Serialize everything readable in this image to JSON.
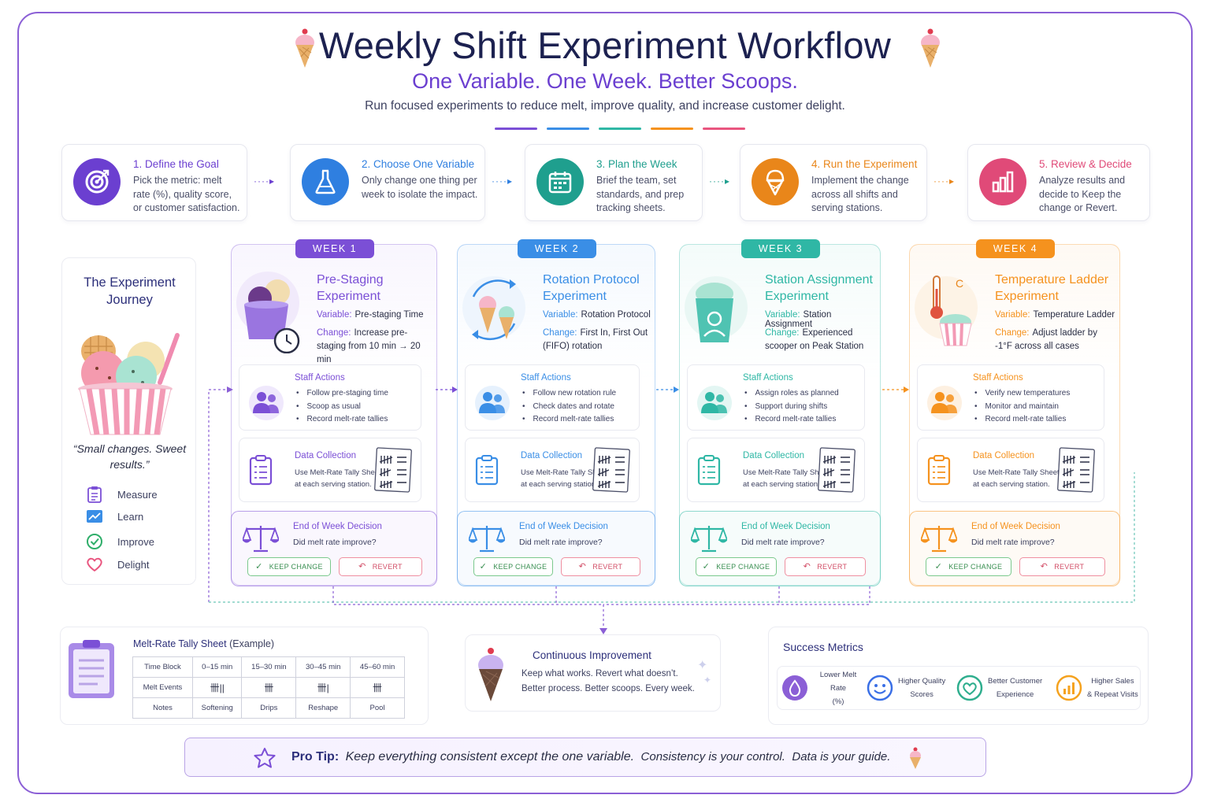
{
  "header": {
    "title": "Weekly Shift Experiment Workflow",
    "subtitle": "One Variable. One Week. Better Scoops.",
    "tagline": "Run focused experiments to reduce melt, improve quality, and increase customer delight.",
    "accent_colors": [
      "#7b4fd6",
      "#3a8ee6",
      "#2fb7a5",
      "#f5921e",
      "#e9557f"
    ]
  },
  "steps": [
    {
      "title": "1. Define the Goal",
      "desc": "Pick the metric: melt rate (%), quality score, or customer satisfaction.",
      "color": "#6b3fd0",
      "icon": "target-icon"
    },
    {
      "title": "2. Choose One Variable",
      "desc": "Only change one thing per week to isolate the impact.",
      "color": "#2f7fe0",
      "icon": "flask-icon"
    },
    {
      "title": "3. Plan the Week",
      "desc": "Brief the team, set standards, and prep tracking sheets.",
      "color": "#1f9f8e",
      "icon": "calendar-icon"
    },
    {
      "title": "4. Run the Experiment",
      "desc": "Implement the change across all shifts and serving stations.",
      "color": "#e9861a",
      "icon": "ice-cream-icon"
    },
    {
      "title": "5. Review & Decide",
      "desc": "Analyze results and decide to Keep the change or Revert.",
      "color": "#e04a78",
      "icon": "bar-chart-icon"
    }
  ],
  "journey": {
    "title": "The Experiment Journey",
    "quote": "“Small changes. Sweet results.”",
    "items": [
      {
        "label": "Measure",
        "icon": "clipboard-icon",
        "color": "#7b4fd6"
      },
      {
        "label": "Learn",
        "icon": "trend-chart-icon",
        "color": "#3a8ee6"
      },
      {
        "label": "Improve",
        "icon": "check-circle-icon",
        "color": "#2fae6a"
      },
      {
        "label": "Delight",
        "icon": "heart-icon",
        "color": "#e9557f"
      }
    ]
  },
  "weeks": [
    {
      "badge": "WEEK 1",
      "color": "#7b4fd6",
      "soft": "#efe8fc",
      "title": "Pre-Staging Experiment",
      "variable_label": "Variable:",
      "variable": "Pre-staging Time",
      "change_label": "Change:",
      "change": "Increase pre-staging from 10 min → 20 min",
      "actions_title": "Staff Actions",
      "actions": [
        "Follow pre-staging time",
        "Scoop as usual",
        "Record melt-rate tallies"
      ],
      "data_title": "Data Collection",
      "data_desc": "Use Melt-Rate Tally Sheet at each serving station.",
      "decision_title": "End of Week Decision",
      "decision_question": "Did melt rate improve?",
      "keep": "KEEP CHANGE",
      "revert": "REVERT"
    },
    {
      "badge": "WEEK 2",
      "color": "#3a8ee6",
      "soft": "#e6f1fd",
      "title": "Rotation Protocol Experiment",
      "variable_label": "Variable:",
      "variable": "Rotation Protocol",
      "change_label": "Change:",
      "change": "First In, First Out (FIFO) rotation",
      "actions_title": "Staff Actions",
      "actions": [
        "Follow new rotation rule",
        "Check dates and rotate",
        "Record melt-rate tallies"
      ],
      "data_title": "Data Collection",
      "data_desc": "Use Melt-Rate Tally Sheet at each serving station.",
      "decision_title": "End of Week Decision",
      "decision_question": "Did melt rate improve?",
      "keep": "KEEP CHANGE",
      "revert": "REVERT"
    },
    {
      "badge": "WEEK 3",
      "color": "#2fb7a5",
      "soft": "#e3f6f3",
      "title": "Station Assignment Experiment",
      "variable_label": "Variable:",
      "variable": "Station Assignment",
      "change_label": "Change:",
      "change": "Experienced scooper on Peak Station",
      "actions_title": "Staff Actions",
      "actions": [
        "Assign roles as planned",
        "Support during shifts",
        "Record melt-rate tallies"
      ],
      "data_title": "Data Collection",
      "data_desc": "Use Melt-Rate Tally Sheet at each serving station.",
      "decision_title": "End of Week Decision",
      "decision_question": "Did melt rate improve?",
      "keep": "KEEP CHANGE",
      "revert": "REVERT"
    },
    {
      "badge": "WEEK 4",
      "color": "#f5921e",
      "soft": "#fdf0e1",
      "title": "Temperature Ladder Experiment",
      "variable_label": "Variable:",
      "variable": "Temperature Ladder",
      "change_label": "Change:",
      "change": "Adjust ladder by -1°F across all cases",
      "actions_title": "Staff Actions",
      "actions": [
        "Verify new temperatures",
        "Monitor and maintain",
        "Record melt-rate tallies"
      ],
      "data_title": "Data Collection",
      "data_desc": "Use Melt-Rate Tally Sheet at each serving station.",
      "decision_title": "End of Week Decision",
      "decision_question": "Did melt rate improve?",
      "keep": "KEEP CHANGE",
      "revert": "REVERT"
    }
  ],
  "tally": {
    "title": "Melt-Rate Tally Sheet",
    "title_suffix": "(Example)",
    "headers": [
      "Time Block",
      "0–15 min",
      "15–30 min",
      "30–45 min",
      "45–60 min"
    ],
    "row2_label": "Melt Events",
    "row2": [
      "卌||",
      "卌",
      "卌|",
      "卌"
    ],
    "row3_label": "Notes",
    "row3": [
      "Softening",
      "Drips",
      "Reshape",
      "Pool"
    ]
  },
  "improvement": {
    "title": "Continuous Improvement",
    "line1": "Keep what works. Revert what doesn’t.",
    "line2": "Better process. Better scoops. Every week."
  },
  "metrics": {
    "title": "Success Metrics",
    "items": [
      {
        "line1": "Lower Melt Rate",
        "line2": "(%)",
        "icon": "drop-icon",
        "color": "#8b5fd6"
      },
      {
        "line1": "Higher Quality",
        "line2": "Scores",
        "icon": "smiley-icon",
        "color": "#3a6fe6"
      },
      {
        "line1": "Better Customer",
        "line2": "Experience",
        "icon": "heart-icon",
        "color": "#2fae8e"
      },
      {
        "line1": "Higher Sales",
        "line2": "& Repeat Visits",
        "icon": "bar-chart-icon",
        "color": "#f5a21e"
      }
    ]
  },
  "protip": {
    "label": "Pro Tip:",
    "text": "Keep everything consistent except the one variable.",
    "text2": "Consistency is your control.",
    "text3": "Data is your guide."
  }
}
